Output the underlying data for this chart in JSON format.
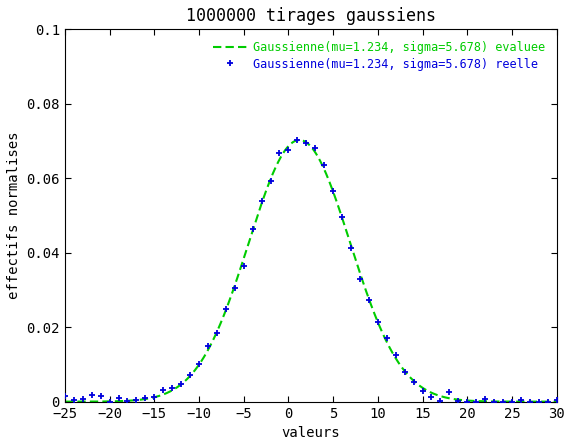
{
  "title": "1000000 tirages gaussiens",
  "xlabel": "valeurs",
  "ylabel": "effectifs normalises",
  "mu": 1.234,
  "sigma": 5.678,
  "xlim": [
    -25,
    30
  ],
  "ylim": [
    0,
    0.1
  ],
  "xticks": [
    -25,
    -20,
    -15,
    -10,
    -5,
    0,
    5,
    10,
    15,
    20,
    25,
    30
  ],
  "yticks": [
    0,
    0.02,
    0.04,
    0.06,
    0.08,
    0.1
  ],
  "gauss_color": "#00cc00",
  "scatter_color": "#0000dd",
  "legend_gauss": "Gaussienne(mu=1.234, sigma=5.678) evaluee",
  "legend_scatter": "Gaussienne(mu=1.234, sigma=5.678) reelle",
  "bg_color": "#ffffff",
  "plot_bg_color": "#ffffff",
  "title_fontsize": 12,
  "label_fontsize": 10,
  "tick_fontsize": 10
}
